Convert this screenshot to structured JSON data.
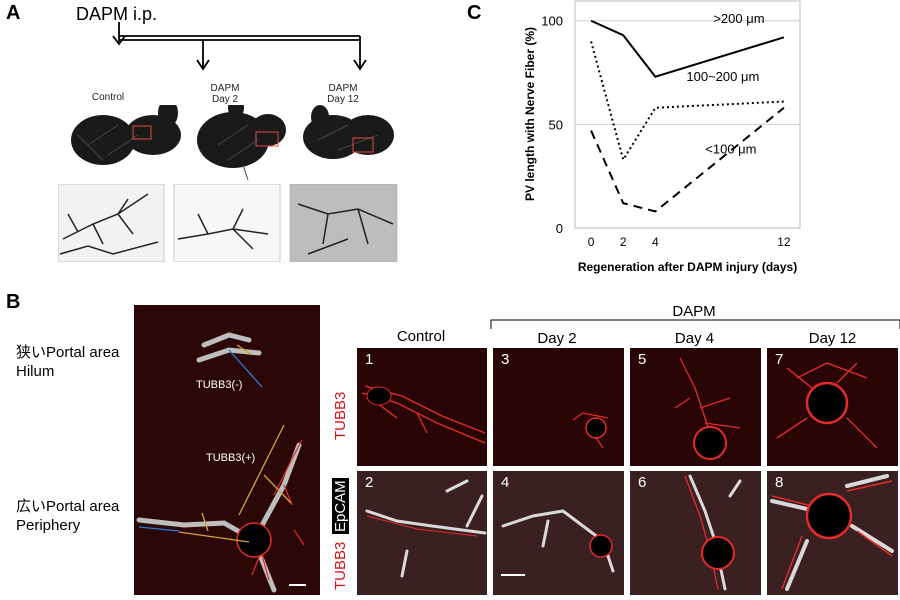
{
  "panel_a": {
    "letter": "A",
    "injection_label": "DAPM i.p.",
    "photo_labels": [
      {
        "line1": "Control",
        "line2": ""
      },
      {
        "line1": "DAPM",
        "line2": "Day 2"
      },
      {
        "line1": "DAPM",
        "line2": "Day 12"
      }
    ]
  },
  "panel_b": {
    "letter": "B",
    "narrow_label_1": "狭いPortal area",
    "narrow_label_2": "Hilum",
    "wide_label_1": "広いPortal area",
    "wide_label_2": "Periphery",
    "tubb3_neg": "TUBB3(-)",
    "tubb3_pos": "TUBB3(+)",
    "dapm_header": "DAPM",
    "columns": [
      "Control",
      "Day 2",
      "Day 4",
      "Day 12"
    ],
    "row1_label": "TUBB3",
    "row2_label_epcam": "EpCAM",
    "row2_label_tubb3": "TUBB3",
    "tile_numbers": [
      "1",
      "3",
      "5",
      "7",
      "2",
      "4",
      "6",
      "8"
    ],
    "colors": {
      "red": "#d0121b",
      "dark_tile": "#2a0505"
    }
  },
  "chart_data": {
    "type": "line",
    "panel_letter": "C",
    "xlabel": "Regeneration after DAPM injury (days)",
    "ylabel": "PV length with Nerve Fiber (%)",
    "x_ticks": [
      0,
      2,
      4,
      12
    ],
    "y_ticks": [
      0,
      50,
      100
    ],
    "xlim": [
      -1,
      13
    ],
    "ylim": [
      0,
      110
    ],
    "grid": "horizontal at 50 and 100",
    "series": [
      {
        "name": ">200 μm",
        "style": "solid",
        "x": [
          0,
          2,
          4,
          12
        ],
        "y": [
          100,
          93,
          73,
          92
        ]
      },
      {
        "name": "100~200 μm",
        "style": "dotted",
        "x": [
          0,
          2,
          4,
          12
        ],
        "y": [
          90,
          33,
          58,
          61
        ]
      },
      {
        "name": "<100 μm",
        "style": "dashed",
        "x": [
          0,
          2,
          4,
          12
        ],
        "y": [
          47,
          12,
          8,
          58
        ]
      }
    ]
  }
}
